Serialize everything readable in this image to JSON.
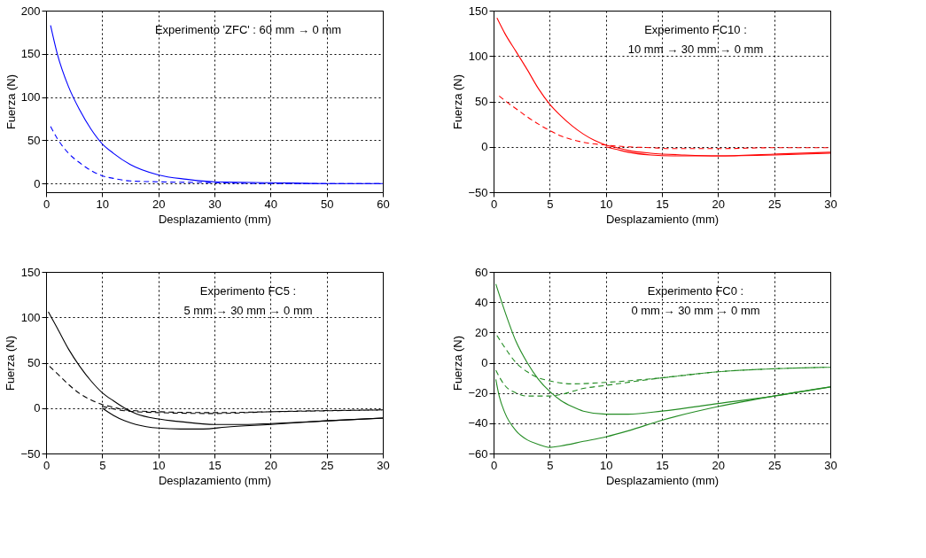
{
  "chart_data": [
    {
      "type": "line",
      "xlabel": "Desplazamiento (mm)",
      "ylabel": "Fuerza (N)",
      "annotations": [
        "Experimento 'ZFC' : 60 mm  → 0 mm"
      ],
      "xlim": [
        0,
        60
      ],
      "xticks": [
        0,
        10,
        20,
        30,
        40,
        50,
        60
      ],
      "ylim": [
        -10,
        200
      ],
      "yticks": [
        0,
        50,
        100,
        150,
        200
      ],
      "grid": true,
      "series": [
        {
          "color": "#0000ff",
          "line_style": "solid",
          "x": [
            0.8,
            2,
            4,
            6,
            8,
            10,
            12,
            15,
            20,
            25,
            30,
            40,
            50,
            60
          ],
          "values": [
            183,
            150,
            112,
            85,
            63,
            46,
            35,
            22,
            10,
            5,
            2,
            1,
            0,
            0
          ]
        },
        {
          "color": "#0000ff",
          "line_style": "dashed",
          "x": [
            0.8,
            2,
            4,
            6,
            8,
            10,
            12,
            15,
            20,
            30,
            40,
            60
          ],
          "values": [
            66,
            52,
            35,
            24,
            15,
            9,
            6,
            3,
            2,
            1,
            0,
            0
          ]
        }
      ]
    },
    {
      "type": "line",
      "xlabel": "Desplazamiento (mm)",
      "ylabel": "Fuerza (N)",
      "annotations": [
        "Experimento FC10 :",
        "10 mm → 30 mm → 0 mm"
      ],
      "xlim": [
        0,
        30
      ],
      "xticks": [
        0,
        5,
        10,
        15,
        20,
        25,
        30
      ],
      "ylim": [
        -50,
        150
      ],
      "yticks": [
        -50,
        0,
        50,
        100,
        150
      ],
      "grid": true,
      "series": [
        {
          "color": "#ff0000",
          "line_style": "solid",
          "x": [
            0.3,
            1,
            2,
            3,
            4,
            5,
            6,
            7,
            8,
            9,
            10,
            11,
            12,
            14,
            17,
            20,
            25,
            30
          ],
          "values": [
            142,
            125,
            105,
            85,
            64,
            47,
            34,
            23,
            14,
            7,
            2,
            -1,
            -4,
            -7,
            -9,
            -10,
            -8,
            -6
          ]
        },
        {
          "color": "#ff0000",
          "line_style": "solid",
          "x": [
            10,
            11,
            12,
            14,
            16,
            20,
            25,
            30
          ],
          "values": [
            0,
            -3,
            -6,
            -9,
            -10,
            -10,
            -9,
            -7
          ]
        },
        {
          "color": "#ff0000",
          "line_style": "dashed",
          "x": [
            0.5,
            1,
            2,
            3,
            4,
            5,
            6,
            7,
            8,
            10,
            12,
            14,
            16,
            20,
            25,
            30
          ],
          "values": [
            56,
            51,
            42,
            33,
            25,
            18,
            12,
            8,
            5,
            2,
            0,
            -1,
            -2,
            -2,
            -1,
            -1
          ]
        }
      ]
    },
    {
      "type": "line",
      "xlabel": "Desplazamiento (mm)",
      "ylabel": "Fuerza (N)",
      "annotations": [
        "Experimento FC5 :",
        "5 mm → 30 mm → 0 mm"
      ],
      "xlim": [
        0,
        30
      ],
      "xticks": [
        0,
        5,
        10,
        15,
        20,
        25,
        30
      ],
      "ylim": [
        -50,
        150
      ],
      "yticks": [
        -50,
        0,
        50,
        100,
        150
      ],
      "grid": true,
      "series": [
        {
          "color": "#000000",
          "line_style": "solid",
          "x": [
            0.2,
            1,
            2,
            3,
            4,
            5,
            6,
            7,
            8,
            10,
            12,
            15,
            18,
            20,
            25,
            30
          ],
          "values": [
            106,
            88,
            65,
            46,
            30,
            17,
            8,
            0,
            -6,
            -12,
            -15,
            -18,
            -18,
            -17,
            -14,
            -11
          ]
        },
        {
          "color": "#000000",
          "line_style": "solid",
          "x": [
            5,
            6,
            7,
            8,
            10,
            12,
            14,
            16,
            20,
            25,
            30
          ],
          "values": [
            0,
            -8,
            -14,
            -18,
            -22,
            -23,
            -23,
            -21,
            -18,
            -14,
            -11
          ]
        },
        {
          "color": "#000000",
          "line_style": "dashed",
          "x": [
            0.3,
            1,
            2,
            3,
            4,
            5,
            6,
            7,
            8,
            10,
            15,
            20,
            25,
            30
          ],
          "values": [
            46,
            38,
            26,
            16,
            9,
            4,
            1,
            -2,
            -3,
            -4,
            -5,
            -4,
            -3,
            -2
          ]
        },
        {
          "color": "#000000",
          "line_style": "dashed",
          "x": [
            5,
            7,
            10,
            15,
            20,
            30
          ],
          "values": [
            2,
            -3,
            -5,
            -6,
            -4,
            -2
          ]
        }
      ]
    },
    {
      "type": "line",
      "xlabel": "Desplazamiento (mm)",
      "ylabel": "Fuerza (N)",
      "annotations": [
        "Experimento FC0 :",
        "0 mm → 30 mm → 0 mm"
      ],
      "xlim": [
        0,
        30
      ],
      "xticks": [
        0,
        5,
        10,
        15,
        20,
        25,
        30
      ],
      "ylim": [
        -60,
        60
      ],
      "yticks": [
        -60,
        -40,
        -20,
        0,
        20,
        40,
        60
      ],
      "grid": true,
      "series": [
        {
          "color": "#228b22",
          "line_style": "solid",
          "x": [
            0.2,
            1,
            2,
            3,
            4,
            5,
            6,
            7,
            8,
            10,
            12,
            15,
            20,
            25,
            30
          ],
          "values": [
            52,
            34,
            14,
            0,
            -11,
            -19,
            -25,
            -29,
            -32,
            -34,
            -34,
            -32,
            -27,
            -22,
            -16
          ]
        },
        {
          "color": "#228b22",
          "line_style": "solid",
          "x": [
            0.2,
            0.5,
            1,
            2,
            3,
            4,
            5,
            6,
            8,
            10,
            12,
            15,
            20,
            25,
            30
          ],
          "values": [
            -11,
            -22,
            -33,
            -45,
            -51,
            -54,
            -56,
            -55,
            -52,
            -49,
            -45,
            -38,
            -29,
            -22,
            -16
          ]
        },
        {
          "color": "#228b22",
          "line_style": "dashed",
          "x": [
            0.3,
            1,
            2,
            3,
            4,
            5,
            7,
            10,
            15,
            20,
            25,
            30
          ],
          "values": [
            18,
            10,
            0,
            -6,
            -10,
            -12,
            -14,
            -13,
            -10,
            -6,
            -4,
            -3
          ]
        },
        {
          "color": "#228b22",
          "line_style": "dashed",
          "x": [
            0.2,
            1,
            2,
            3,
            5,
            6,
            8,
            10,
            15,
            20,
            25,
            30
          ],
          "values": [
            -5,
            -15,
            -20,
            -22,
            -22,
            -21,
            -17,
            -15,
            -10,
            -6,
            -4,
            -3
          ]
        }
      ]
    }
  ]
}
